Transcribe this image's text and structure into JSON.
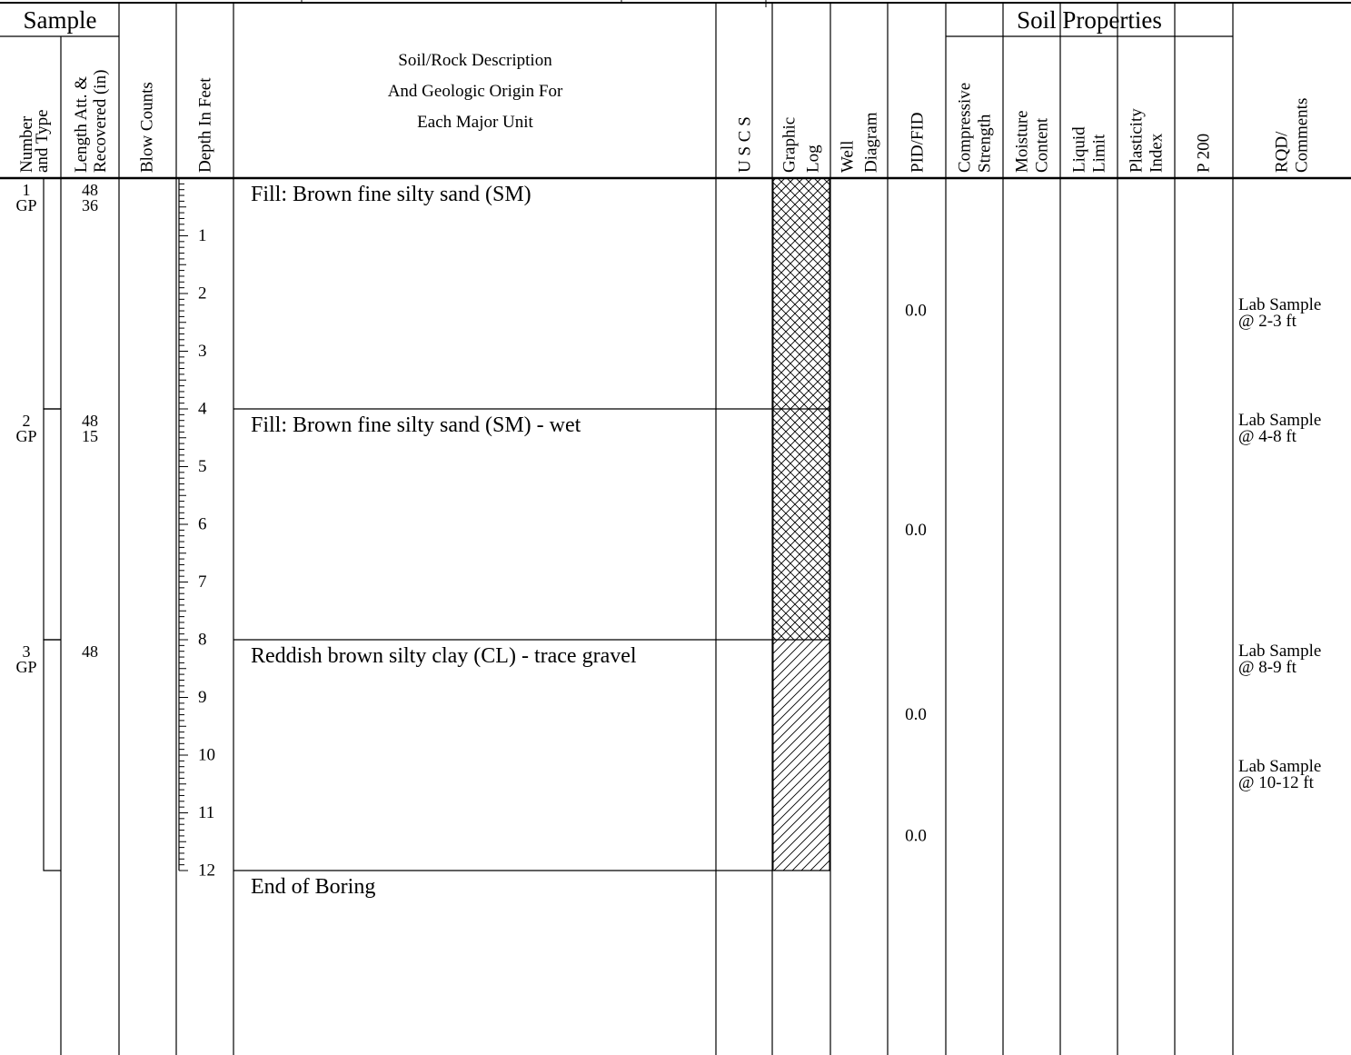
{
  "header": {
    "sample_group": "Sample",
    "soil_properties_group": "Soil Properties",
    "columns": {
      "number_type": [
        "Number",
        "and Type"
      ],
      "length": [
        "Length Att. &",
        "Recovered (in)"
      ],
      "blow_counts": [
        "Blow Counts"
      ],
      "depth": [
        "Depth In Feet"
      ],
      "description": [
        "Soil/Rock Description",
        "And Geologic Origin For",
        "Each Major Unit"
      ],
      "uscs": [
        "U S C S"
      ],
      "graphic_log": [
        "Graphic",
        "Log"
      ],
      "well_diagram": [
        "Well",
        "Diagram"
      ],
      "pid_fid": [
        "PID/FID"
      ],
      "compressive": [
        "Compressive",
        "Strength"
      ],
      "moisture": [
        "Moisture",
        "Content"
      ],
      "liquid": [
        "Liquid",
        "Limit"
      ],
      "plasticity": [
        "Plasticity",
        "Index"
      ],
      "p200": [
        "P 200"
      ],
      "rqd": [
        "RQD/",
        "Comments"
      ]
    }
  },
  "depth_scale": {
    "max_ft": 12,
    "labels": [
      "1",
      "2",
      "3",
      "4",
      "5",
      "6",
      "7",
      "8",
      "9",
      "10",
      "11",
      "12"
    ]
  },
  "samples": [
    {
      "number": "1",
      "type": "GP",
      "length_att": "48",
      "recovered": "36",
      "top_ft": 0,
      "bottom_ft": 4
    },
    {
      "number": "2",
      "type": "GP",
      "length_att": "48",
      "recovered": "15",
      "top_ft": 4,
      "bottom_ft": 8
    },
    {
      "number": "3",
      "type": "GP",
      "length_att": "48",
      "recovered": "",
      "top_ft": 8,
      "bottom_ft": 12
    }
  ],
  "units": [
    {
      "description": "Fill:  Brown fine silty sand (SM)",
      "top_ft": 0,
      "bottom_ft": 4,
      "pattern": "crosshatch"
    },
    {
      "description": "Fill:  Brown fine silty sand (SM) - wet",
      "top_ft": 4,
      "bottom_ft": 8,
      "pattern": "crosshatch"
    },
    {
      "description": "Reddish brown silty clay (CL) - trace gravel",
      "top_ft": 8,
      "bottom_ft": 12,
      "pattern": "diagonal"
    },
    {
      "description": "End of Boring",
      "top_ft": 12,
      "bottom_ft": null,
      "pattern": "none"
    }
  ],
  "pid_readings": [
    {
      "value": "0.0",
      "depth_ft": 2.3
    },
    {
      "value": "0.0",
      "depth_ft": 6.1
    },
    {
      "value": "0.0",
      "depth_ft": 9.3
    },
    {
      "value": "0.0",
      "depth_ft": 11.4
    }
  ],
  "comments": [
    {
      "lines": [
        "Lab Sample",
        "@ 2-3 ft"
      ],
      "depth_ft": 2.2
    },
    {
      "lines": [
        "Lab Sample",
        "@ 4-8 ft"
      ],
      "depth_ft": 4.2
    },
    {
      "lines": [
        "Lab Sample",
        "@ 8-9 ft"
      ],
      "depth_ft": 8.2
    },
    {
      "lines": [
        "Lab Sample",
        "@ 10-12 ft"
      ],
      "depth_ft": 10.2
    }
  ]
}
